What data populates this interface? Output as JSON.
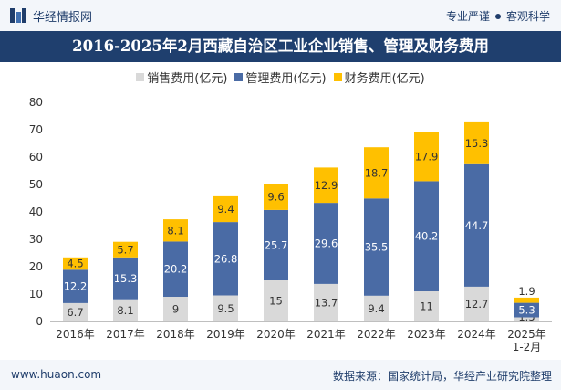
{
  "header": {
    "brand_name": "华经情报网",
    "slogan_left": "专业严谨",
    "slogan_right": "客观科学"
  },
  "footer": {
    "url": "www.huaon.com",
    "source": "数据来源：国家统计局，华经产业研究院整理"
  },
  "colors": {
    "title_band": "#1f3f6e",
    "sales": "#d9d9d9",
    "management": "#4a6ba5",
    "finance": "#ffc000"
  },
  "chart_data": {
    "type": "bar",
    "stacked": true,
    "title": "2016-2025年2月西藏自治区工业企业销售、管理及财务费用",
    "categories": [
      "2016年",
      "2017年",
      "2018年",
      "2019年",
      "2020年",
      "2021年",
      "2022年",
      "2023年",
      "2024年",
      "2025年\n1-2月"
    ],
    "series": [
      {
        "name": "销售费用(亿元)",
        "color": "#d9d9d9",
        "values": [
          6.7,
          8.1,
          9,
          9.5,
          15,
          13.7,
          9.4,
          11,
          12.7,
          1.5
        ]
      },
      {
        "name": "管理费用(亿元)",
        "color": "#4a6ba5",
        "values": [
          12.2,
          15.3,
          20.2,
          26.8,
          25.7,
          29.6,
          35.5,
          40.2,
          44.7,
          5.3
        ]
      },
      {
        "name": "财务费用(亿元)",
        "color": "#ffc000",
        "values": [
          4.5,
          5.7,
          8.1,
          9.4,
          9.6,
          12.9,
          18.7,
          17.9,
          15.3,
          1.9
        ]
      }
    ],
    "ylim": [
      0,
      80
    ],
    "yticks": [
      0,
      10,
      20,
      30,
      40,
      50,
      60,
      70,
      80
    ],
    "xlabel": "",
    "ylabel": "",
    "grid": false,
    "legend_position": "top-center"
  }
}
